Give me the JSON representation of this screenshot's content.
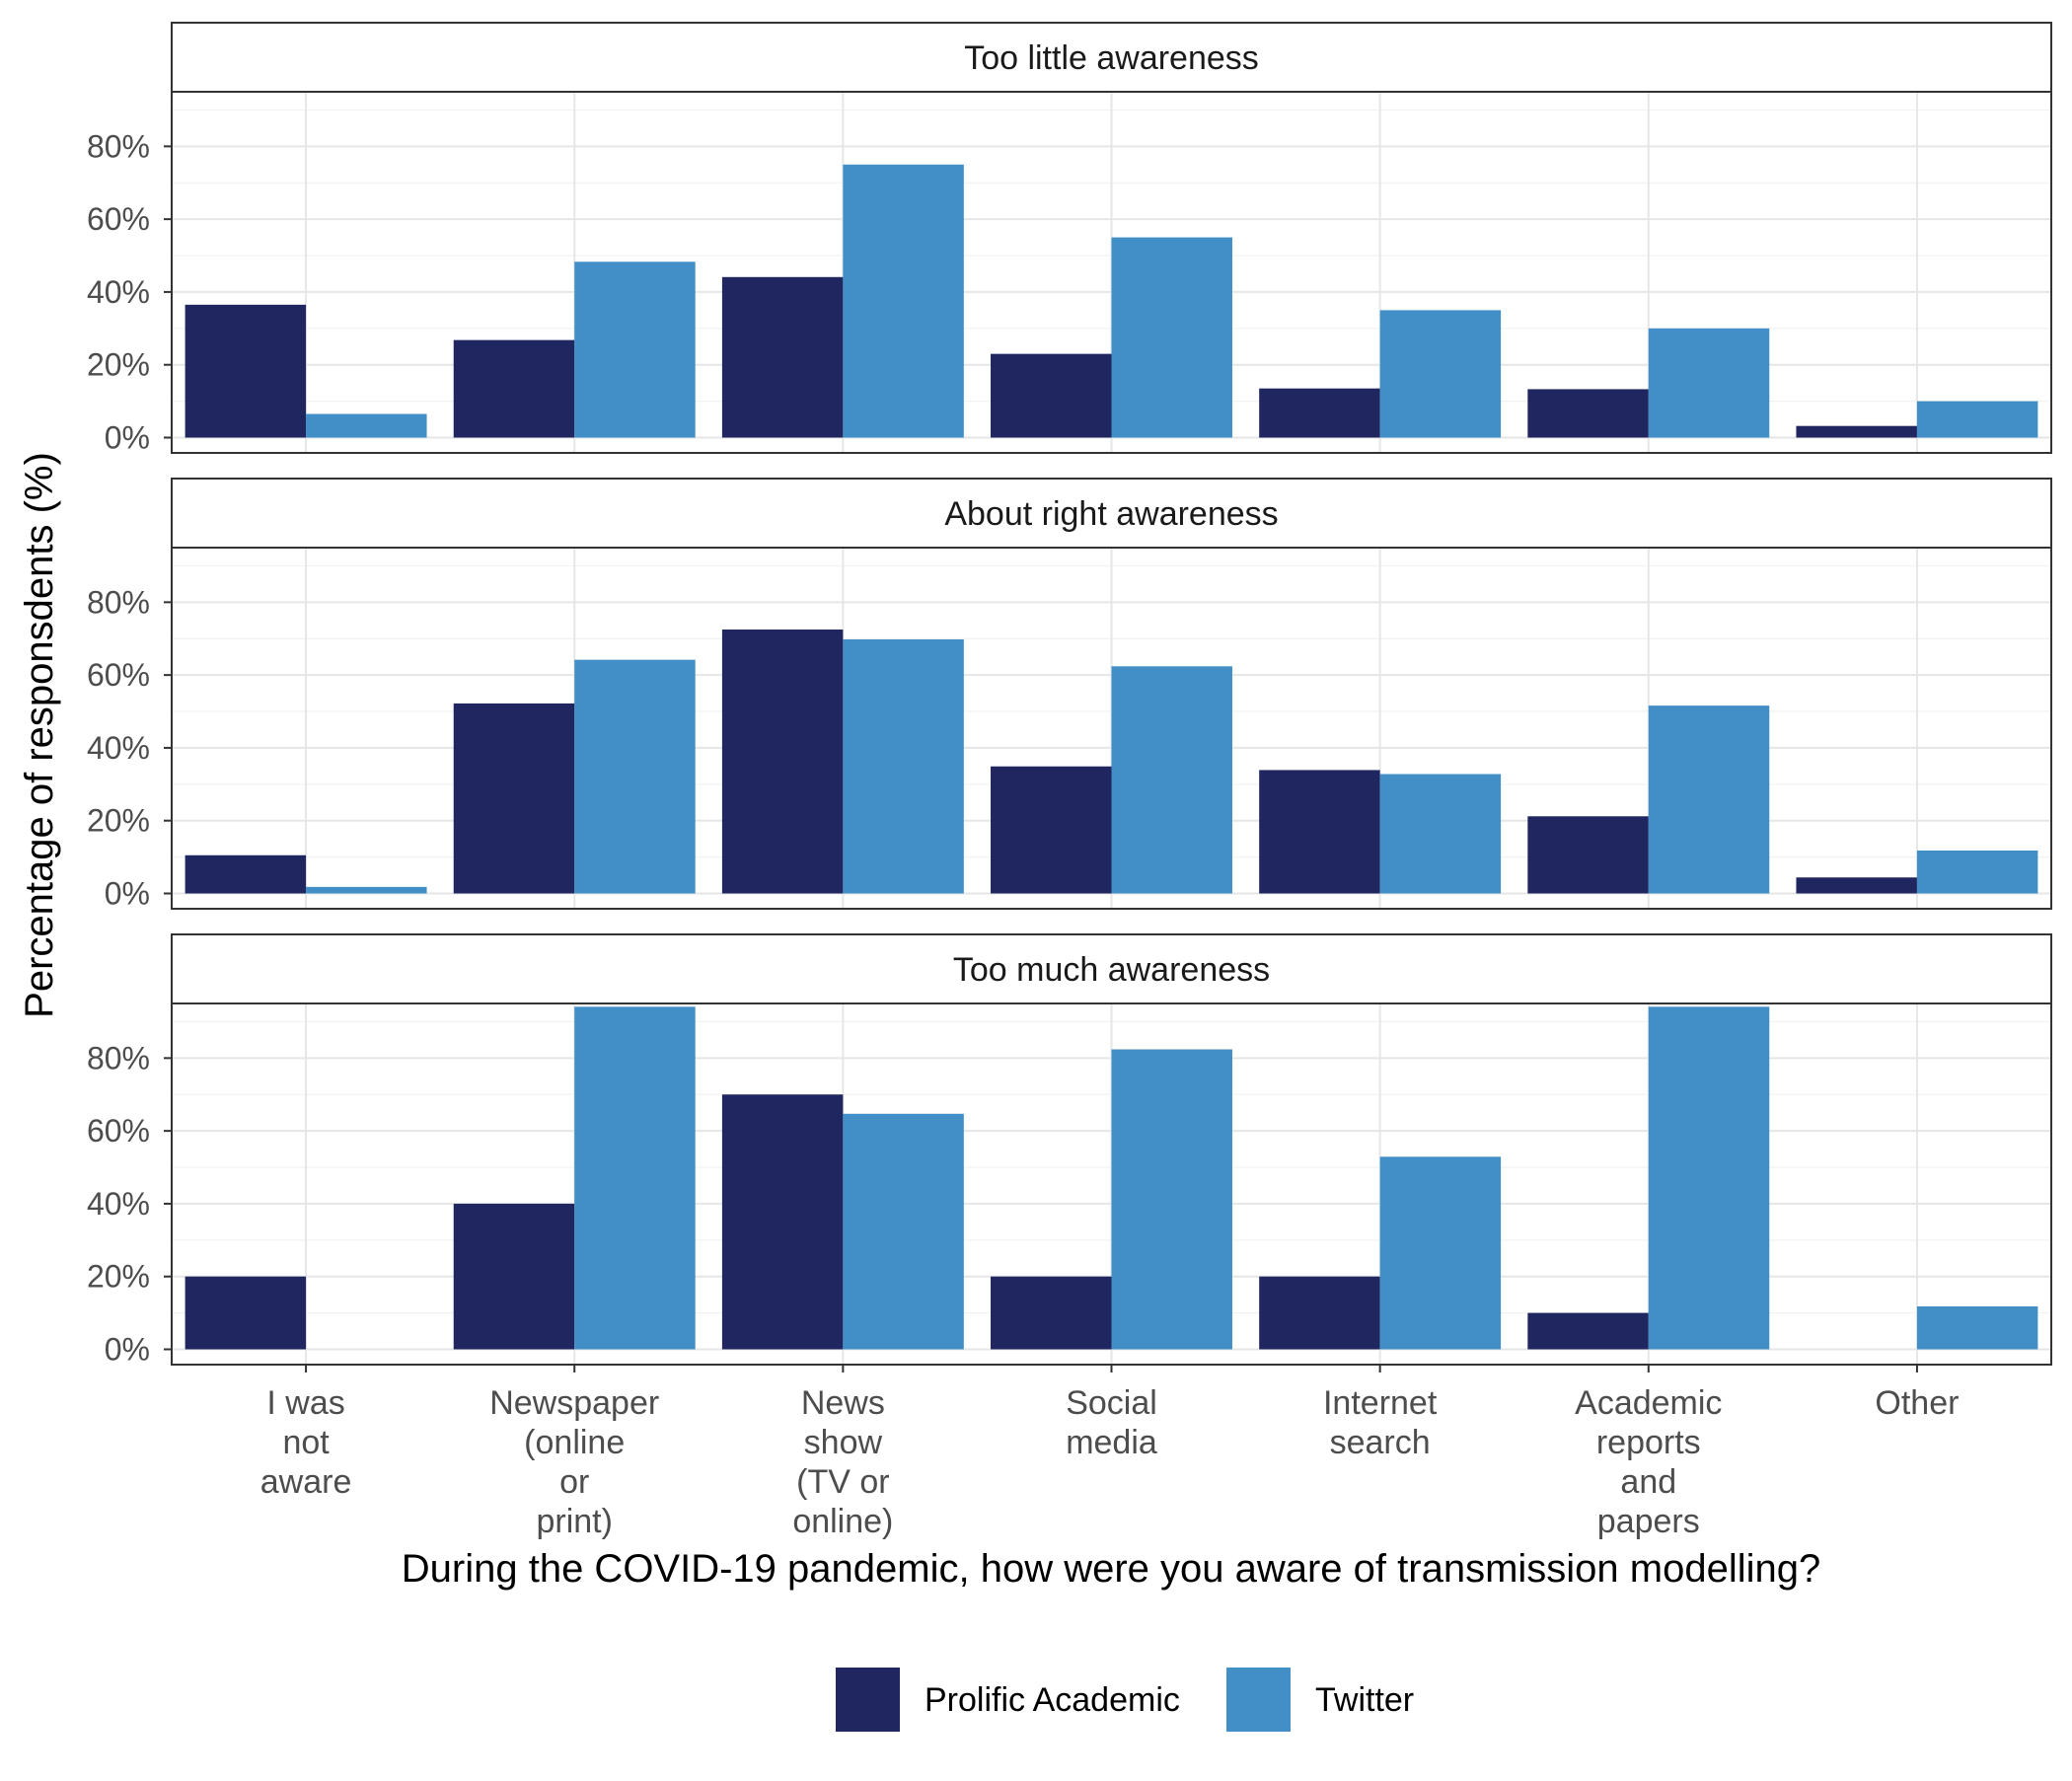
{
  "chart_data": {
    "type": "bar",
    "xlabel": "During the COVID-19 pandemic, how were you aware of transmission modelling?",
    "ylabel": "Percentage of responsdents (%)",
    "ylim": [
      0,
      100
    ],
    "yticks": [
      "0%",
      "20%",
      "40%",
      "60%",
      "80%"
    ],
    "grid": true,
    "legend_position": "bottom",
    "categories": [
      "I was not aware",
      "Newspaper (online or print)",
      "News show (TV or online)",
      "Social media",
      "Internet search",
      "Academic reports and papers",
      "Other"
    ],
    "category_lines": [
      [
        "I was",
        "not",
        "aware"
      ],
      [
        "Newspaper",
        "(online",
        "or",
        "print)"
      ],
      [
        "News",
        "show",
        "(TV or",
        "online)"
      ],
      [
        "Social",
        "media"
      ],
      [
        "Internet",
        "search"
      ],
      [
        "Academic",
        "reports",
        "and",
        "papers"
      ],
      [
        "Other"
      ]
    ],
    "legend": [
      "Prolific Academic",
      "Twitter"
    ],
    "colors": {
      "Prolific Academic": "#1f2660",
      "Twitter": "#418fc6"
    },
    "panels": [
      {
        "title": "Too little awareness",
        "series": [
          {
            "name": "Prolific Academic",
            "values": [
              36.5,
              26.8,
              44.1,
              23.0,
              13.5,
              13.3,
              3.2
            ]
          },
          {
            "name": "Twitter",
            "values": [
              6.5,
              48.3,
              75.0,
              55.0,
              35.0,
              30.0,
              10.0
            ]
          }
        ]
      },
      {
        "title": "About right awareness",
        "series": [
          {
            "name": "Prolific Academic",
            "values": [
              10.5,
              52.2,
              72.5,
              34.9,
              33.9,
              21.2,
              4.4
            ]
          },
          {
            "name": "Twitter",
            "values": [
              1.8,
              64.2,
              69.8,
              62.4,
              32.8,
              51.6,
              11.8
            ]
          }
        ]
      },
      {
        "title": "Too much awareness",
        "series": [
          {
            "name": "Prolific Academic",
            "values": [
              20.0,
              40.0,
              70.0,
              20.0,
              20.0,
              10.0,
              0.0
            ]
          },
          {
            "name": "Twitter",
            "values": [
              0.0,
              94.1,
              64.7,
              82.4,
              52.9,
              94.1,
              11.8
            ]
          }
        ]
      }
    ]
  }
}
